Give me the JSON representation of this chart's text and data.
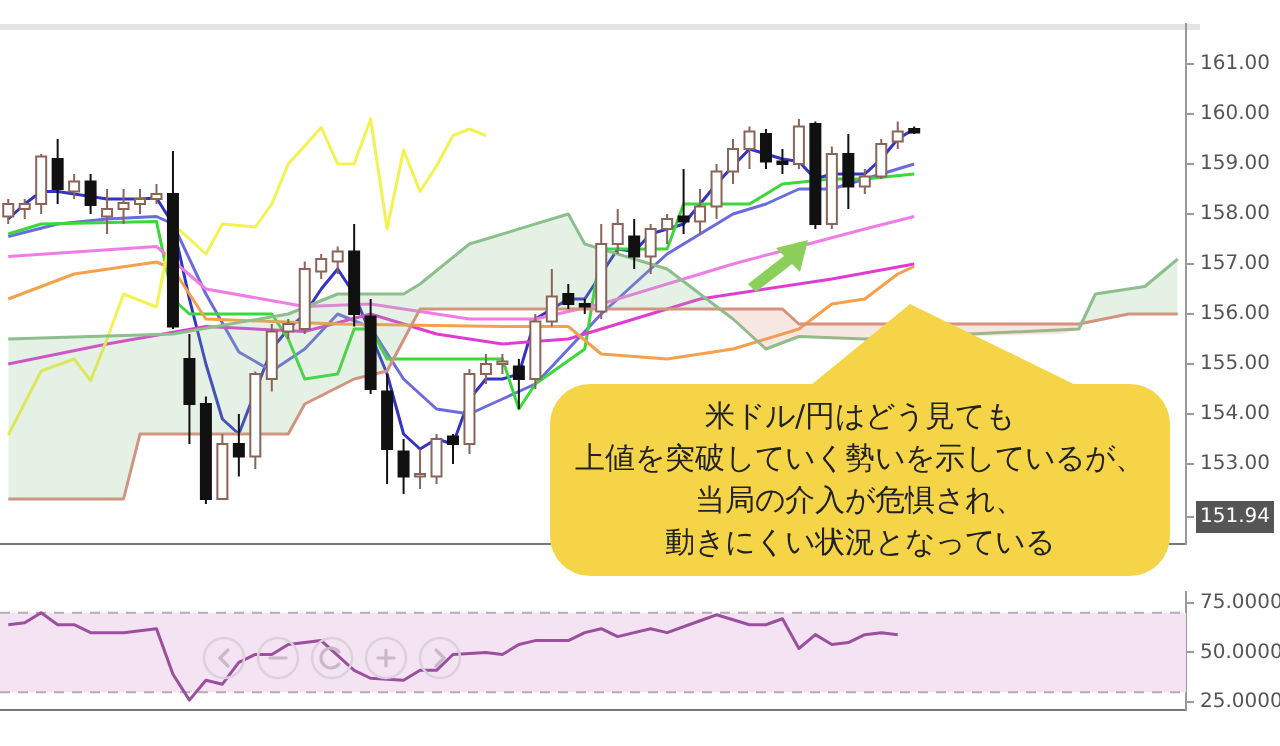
{
  "chart_data": [
    {
      "type": "candlestick",
      "categories": [
        null,
        null,
        null,
        null,
        null,
        null,
        null,
        null,
        null,
        null,
        null,
        null,
        null,
        null,
        null,
        null,
        null,
        null,
        null,
        null,
        null,
        null,
        null,
        null,
        null,
        null,
        null,
        null,
        null,
        null,
        null,
        null,
        null,
        null,
        null,
        null,
        null,
        null,
        null,
        null,
        null,
        null,
        null,
        null,
        null,
        null,
        null,
        null,
        null,
        null,
        null,
        null,
        null,
        null,
        null,
        null,
        null,
        null,
        null,
        null,
        null,
        null,
        null,
        null,
        null,
        null,
        null,
        null,
        null,
        null,
        null,
        null
      ],
      "ohlc": [
        [
          157.95,
          158.3,
          157.8,
          158.2
        ],
        [
          158.1,
          158.3,
          157.9,
          158.2
        ],
        [
          158.2,
          159.2,
          158.0,
          159.15
        ],
        [
          159.1,
          159.5,
          158.2,
          158.5
        ],
        [
          158.45,
          158.8,
          158.3,
          158.65
        ],
        [
          158.65,
          158.8,
          158.0,
          158.18
        ],
        [
          157.95,
          158.5,
          157.6,
          158.1
        ],
        [
          158.1,
          158.5,
          157.8,
          158.22
        ],
        [
          158.2,
          158.5,
          158.0,
          158.3
        ],
        [
          158.3,
          158.6,
          158.2,
          158.4
        ],
        [
          158.4,
          159.26,
          155.7,
          155.75
        ],
        [
          155.1,
          155.6,
          153.4,
          154.2
        ],
        [
          154.2,
          154.35,
          152.2,
          152.3
        ],
        [
          152.3,
          153.6,
          152.3,
          153.4
        ],
        [
          153.4,
          154.0,
          152.75,
          153.15
        ],
        [
          153.15,
          154.85,
          152.9,
          154.8
        ],
        [
          154.7,
          155.8,
          154.45,
          155.65
        ],
        [
          155.65,
          155.9,
          155.5,
          155.8
        ],
        [
          155.7,
          157.05,
          155.6,
          156.9
        ],
        [
          156.85,
          157.2,
          156.7,
          157.1
        ],
        [
          157.05,
          157.35,
          156.8,
          157.25
        ],
        [
          157.25,
          157.8,
          155.75,
          156.0
        ],
        [
          155.95,
          156.3,
          154.4,
          154.5
        ],
        [
          154.45,
          154.8,
          152.6,
          153.3
        ],
        [
          153.25,
          153.5,
          152.4,
          152.75
        ],
        [
          152.75,
          153.3,
          152.5,
          152.8
        ],
        [
          152.75,
          153.6,
          152.6,
          153.5
        ],
        [
          153.55,
          153.6,
          153.0,
          153.4
        ],
        [
          153.4,
          154.9,
          153.2,
          154.8
        ],
        [
          154.8,
          155.2,
          154.6,
          155.0
        ],
        [
          155.0,
          155.2,
          154.8,
          155.05
        ],
        [
          154.95,
          155.1,
          154.1,
          154.7
        ],
        [
          154.7,
          156.0,
          154.5,
          155.85
        ],
        [
          155.85,
          156.9,
          155.75,
          156.35
        ],
        [
          156.4,
          156.6,
          156.1,
          156.2
        ],
        [
          156.2,
          156.3,
          156.0,
          156.15
        ],
        [
          156.05,
          157.8,
          155.9,
          157.4
        ],
        [
          157.4,
          158.1,
          157.2,
          157.8
        ],
        [
          157.55,
          157.9,
          156.9,
          157.15
        ],
        [
          157.15,
          157.8,
          156.8,
          157.7
        ],
        [
          157.7,
          158.0,
          157.4,
          157.9
        ],
        [
          157.95,
          158.9,
          157.6,
          157.85
        ],
        [
          157.85,
          158.5,
          157.6,
          158.15
        ],
        [
          158.15,
          159.0,
          157.9,
          158.85
        ],
        [
          158.85,
          159.5,
          158.6,
          159.3
        ],
        [
          159.3,
          159.75,
          158.9,
          159.65
        ],
        [
          159.6,
          159.7,
          158.9,
          159.05
        ],
        [
          159.05,
          159.3,
          158.8,
          159.0
        ],
        [
          159.0,
          159.9,
          158.9,
          159.75
        ],
        [
          159.8,
          159.85,
          157.7,
          157.8
        ],
        [
          157.8,
          159.35,
          157.7,
          159.2
        ],
        [
          159.2,
          159.6,
          158.1,
          158.55
        ],
        [
          158.55,
          158.9,
          158.4,
          158.75
        ],
        [
          158.75,
          159.5,
          158.7,
          159.4
        ],
        [
          159.45,
          159.85,
          159.3,
          159.65
        ],
        [
          159.7,
          159.75,
          159.6,
          159.63
        ],
        null,
        null,
        null,
        null,
        null,
        null,
        null,
        null,
        null,
        null,
        null,
        null,
        null,
        null,
        null,
        null
      ],
      "series": [
        {
          "type": "line",
          "color": "#8cbf8c",
          "lower": [
            152.3,
            152.3,
            152.3,
            152.3,
            152.3,
            152.3,
            152.3,
            152.3,
            153.6,
            153.6,
            153.6,
            153.6,
            153.6,
            153.6,
            153.6,
            153.6,
            153.6,
            153.6,
            154.2,
            154.4,
            154.55,
            154.7,
            154.8,
            154.86,
            155.5,
            156.1,
            156.1,
            156.1,
            156.1,
            156.1,
            156.1,
            156.1,
            156.1,
            156.1,
            156.1,
            156.1,
            156.1,
            156.1,
            156.1,
            156.1,
            156.1,
            156.1,
            156.1,
            156.1,
            156.1,
            156.1,
            156.1,
            156.1,
            155.8,
            155.8,
            155.8,
            155.8,
            null,
            null,
            null,
            null,
            null,
            null,
            null,
            null,
            null,
            null,
            null,
            null,
            155.8,
            155.8,
            155.85,
            155.95,
            156.0,
            156.0,
            156.0,
            156.0
          ],
          "upper": [
            155.5,
            155.5,
            155.5,
            155.5,
            155.55,
            155.55,
            155.55,
            155.55,
            155.6,
            155.6,
            155.6,
            155.65,
            155.7,
            155.75,
            155.8,
            155.85,
            155.9,
            156.0,
            156.15,
            156.3,
            156.4,
            156.4,
            156.4,
            156.4,
            156.4,
            156.6,
            156.9,
            157.15,
            157.4,
            157.5,
            157.6,
            157.7,
            157.8,
            157.9,
            158.0,
            157.4,
            157.3,
            157.2,
            157.1,
            157.0,
            156.9,
            156.65,
            156.4,
            156.15,
            155.9,
            155.6,
            155.3,
            155.45,
            155.55,
            155.55,
            155.5,
            155.5,
            null,
            null,
            null,
            null,
            null,
            null,
            null,
            null,
            null,
            null,
            null,
            null,
            155.6,
            155.7,
            156.4,
            156.45,
            156.5,
            156.55,
            156.8,
            157.1
          ],
          "values": [
            155.5,
            null,
            null,
            null,
            null,
            null,
            null,
            null,
            null,
            null,
            155.6,
            null,
            null,
            null,
            null,
            null,
            null,
            156.0,
            null,
            null,
            156.4,
            null,
            null,
            null,
            156.4,
            156.6,
            null,
            null,
            157.4,
            null,
            null,
            null,
            null,
            null,
            158.0,
            157.4,
            null,
            null,
            null,
            null,
            156.9,
            null,
            null,
            null,
            155.9,
            null,
            155.3,
            null,
            155.55,
            null,
            null,
            null,
            155.5,
            null,
            null,
            null,
            null,
            null,
            null,
            null,
            null,
            null,
            null,
            null,
            null,
            155.7,
            156.4,
            null,
            null,
            156.55,
            null,
            157.1
          ]
        },
        {
          "type": "line",
          "color": "#d9907e",
          "values": [
            152.3,
            null,
            null,
            null,
            null,
            null,
            null,
            152.3,
            153.6,
            null,
            null,
            null,
            null,
            null,
            null,
            null,
            null,
            153.6,
            154.2,
            null,
            null,
            154.7,
            null,
            154.86,
            null,
            156.1,
            null,
            null,
            null,
            null,
            null,
            null,
            null,
            null,
            null,
            null,
            null,
            null,
            null,
            null,
            null,
            null,
            null,
            null,
            null,
            null,
            null,
            156.1,
            155.8,
            null,
            null,
            null,
            null,
            null,
            null,
            null,
            null,
            null,
            null,
            null,
            null,
            null,
            null,
            null,
            null,
            155.8,
            null,
            null,
            156.0,
            null,
            null,
            156.0
          ]
        },
        {
          "type": "line",
          "color": "#f2f250",
          "values": [
            153.58,
            null,
            154.86,
            null,
            155.1,
            154.67,
            155.5,
            156.4,
            null,
            156.14,
            157.8,
            null,
            157.2,
            157.8,
            null,
            157.74,
            158.2,
            159.0,
            null,
            159.73,
            159.0,
            159.0,
            159.9,
            157.7,
            159.28,
            158.45,
            158.96,
            159.57,
            159.7,
            159.57,
            null,
            null,
            null,
            null,
            null,
            null,
            null,
            null,
            null,
            null,
            null,
            null,
            null,
            null,
            null,
            null,
            null,
            null,
            null,
            null,
            null,
            null,
            null,
            null,
            null,
            null,
            null,
            null,
            null,
            null,
            null,
            null,
            null,
            null,
            null,
            null,
            null,
            null,
            null,
            null,
            null,
            null
          ]
        },
        {
          "type": "line",
          "color": "#f5a04a",
          "values": [
            156.3,
            null,
            null,
            null,
            156.8,
            null,
            null,
            null,
            null,
            157.04,
            156.9,
            null,
            155.9,
            null,
            null,
            null,
            null,
            null,
            null,
            null,
            155.8,
            null,
            null,
            null,
            null,
            null,
            null,
            null,
            null,
            null,
            155.75,
            null,
            null,
            null,
            155.75,
            null,
            155.2,
            null,
            null,
            null,
            155.1,
            null,
            null,
            null,
            155.3,
            null,
            null,
            null,
            155.7,
            null,
            156.2,
            null,
            156.3,
            null,
            156.8,
            156.95,
            null,
            null,
            null,
            null,
            null,
            null,
            null,
            null,
            null,
            null,
            null,
            null,
            null,
            null,
            null,
            null
          ]
        },
        {
          "type": "line",
          "color": "#f07ce6",
          "values": [
            157.15,
            null,
            null,
            null,
            null,
            null,
            null,
            null,
            null,
            157.35,
            null,
            null,
            156.5,
            null,
            null,
            null,
            null,
            null,
            156.15,
            null,
            null,
            null,
            156.2,
            null,
            null,
            null,
            null,
            null,
            155.9,
            null,
            null,
            null,
            155.9,
            null,
            null,
            null,
            156.2,
            null,
            null,
            null,
            156.6,
            null,
            null,
            null,
            157.0,
            null,
            null,
            null,
            null,
            null,
            null,
            null,
            157.7,
            null,
            null,
            157.95,
            null,
            null,
            null,
            null,
            null,
            null,
            null,
            null,
            null,
            null,
            null,
            null,
            null,
            null,
            null,
            null
          ]
        },
        {
          "type": "line",
          "color": "#e03cd2",
          "values": [
            155.0,
            null,
            null,
            null,
            null,
            null,
            155.4,
            null,
            null,
            null,
            null,
            null,
            155.75,
            null,
            null,
            null,
            null,
            null,
            155.65,
            null,
            null,
            null,
            156.0,
            null,
            null,
            null,
            155.6,
            null,
            null,
            null,
            155.4,
            null,
            null,
            null,
            155.5,
            null,
            null,
            null,
            155.9,
            null,
            null,
            null,
            156.3,
            null,
            null,
            null,
            null,
            null,
            null,
            null,
            156.7,
            null,
            null,
            null,
            null,
            157.0,
            null,
            null,
            null,
            null,
            null,
            null,
            null,
            null,
            null,
            null,
            null,
            null,
            null,
            null,
            null,
            null
          ]
        },
        {
          "type": "line",
          "color": "#3ad83a",
          "values": [
            157.6,
            null,
            157.8,
            null,
            null,
            null,
            null,
            null,
            null,
            157.85,
            156.3,
            156.0,
            null,
            null,
            null,
            null,
            156.0,
            155.5,
            154.7,
            null,
            154.8,
            155.7,
            155.7,
            155.1,
            null,
            null,
            null,
            null,
            null,
            null,
            155.1,
            154.1,
            154.6,
            null,
            null,
            155.3,
            157.3,
            null,
            null,
            null,
            157.3,
            158.2,
            null,
            null,
            null,
            158.2,
            null,
            158.6,
            null,
            null,
            158.7,
            null,
            158.7,
            null,
            null,
            158.8,
            null,
            null,
            null,
            null,
            null,
            null,
            null,
            null,
            null,
            null,
            null,
            null,
            null,
            null,
            null,
            null
          ]
        },
        {
          "type": "line",
          "color": "#6b6be0",
          "values": [
            157.55,
            null,
            null,
            157.8,
            null,
            null,
            157.9,
            null,
            null,
            157.95,
            157.8,
            null,
            156.4,
            null,
            155.24,
            null,
            154.86,
            null,
            155.3,
            null,
            156.0,
            null,
            155.73,
            null,
            154.7,
            null,
            154.1,
            null,
            154.0,
            null,
            154.3,
            null,
            154.6,
            null,
            155.3,
            null,
            156.0,
            null,
            156.6,
            null,
            157.2,
            null,
            157.6,
            null,
            158.0,
            null,
            158.2,
            null,
            158.5,
            null,
            158.5,
            null,
            158.7,
            null,
            null,
            159.0,
            null,
            null,
            null,
            null,
            null,
            null,
            null,
            null,
            null,
            null,
            null,
            null,
            null,
            null,
            null,
            null
          ]
        },
        {
          "type": "line",
          "color": "#3333c4",
          "values": [
            157.9,
            158.2,
            158.45,
            158.45,
            158.4,
            158.35,
            158.3,
            158.3,
            158.3,
            158.32,
            157.8,
            156.3,
            155.0,
            153.9,
            153.6,
            null,
            155.3,
            155.7,
            156.0,
            156.5,
            156.9,
            156.4,
            null,
            154.8,
            153.6,
            153.3,
            153.5,
            153.4,
            154.3,
            154.7,
            154.7,
            154.8,
            155.9,
            156.1,
            156.3,
            156.3,
            156.8,
            157.3,
            157.25,
            157.6,
            157.7,
            157.8,
            158.2,
            158.6,
            158.96,
            159.3,
            159.2,
            159.1,
            159.05,
            158.7,
            158.8,
            158.8,
            158.8,
            159.1,
            159.5,
            159.7,
            null,
            null,
            null,
            null,
            null,
            null,
            null,
            null,
            null,
            null,
            null,
            null,
            null,
            null,
            null,
            null
          ]
        }
      ],
      "ylim": [
        151.4,
        161.8
      ],
      "yticks": [
        {
          "value": 151.94,
          "label": "151.94"
        },
        {
          "value": 153,
          "label": "153.00"
        },
        {
          "value": 154,
          "label": "154.00"
        },
        {
          "value": 155,
          "label": "155.00"
        },
        {
          "value": 156,
          "label": "156.00"
        },
        {
          "value": 157,
          "label": "157.00"
        },
        {
          "value": 158,
          "label": "158.00"
        },
        {
          "value": 159,
          "label": "159.00"
        },
        {
          "value": 160,
          "label": "160.00"
        },
        {
          "value": 161,
          "label": "161.00"
        }
      ],
      "annotations": [
        "米ドル/円はどう見ても",
        "上値を突破していく勢いを示しているが、",
        "当局の介入が危惧され、",
        "動きにくい状況となっている"
      ]
    },
    {
      "type": "line",
      "categories": [
        null,
        null,
        null,
        null,
        null,
        null,
        null,
        null,
        null,
        null,
        null,
        null,
        null,
        null,
        null,
        null,
        null,
        null,
        null,
        null,
        null,
        null,
        null,
        null,
        null,
        null,
        null,
        null,
        null,
        null,
        null,
        null,
        null,
        null,
        null,
        null,
        null,
        null,
        null,
        null,
        null,
        null,
        null,
        null,
        null,
        null,
        null,
        null,
        null,
        null,
        null,
        null,
        null,
        null,
        null,
        null,
        null,
        null,
        null,
        null,
        null,
        null,
        null,
        null,
        null,
        null,
        null,
        null,
        null,
        null,
        null,
        null
      ],
      "series": [
        {
          "color": "#9c4f9e",
          "values": [
            64,
            65,
            70,
            64,
            64,
            60,
            null,
            60,
            null,
            62,
            39,
            26,
            36,
            34,
            45,
            49,
            49,
            54,
            null,
            56,
            null,
            41,
            37,
            null,
            36,
            41,
            41,
            49,
            null,
            50,
            49,
            54,
            56,
            null,
            56,
            60,
            62,
            58,
            60,
            62,
            60,
            null,
            66,
            69,
            null,
            64,
            64,
            67,
            52,
            59,
            54,
            55,
            59,
            60,
            59,
            null,
            null,
            null,
            null,
            null,
            null,
            null,
            null,
            null,
            null,
            null,
            null,
            null,
            null,
            null,
            null,
            null
          ]
        }
      ],
      "ylim": [
        21,
        80.5
      ],
      "yticks": [
        {
          "value": 25,
          "label": "25.0000"
        },
        {
          "value": 50,
          "label": "50.0000"
        },
        {
          "value": 75,
          "label": "75.0000"
        }
      ],
      "bands": [
        {
          "axis": "y",
          "from": 30,
          "to": 70,
          "color": "#f3e3f3"
        }
      ],
      "ref_lines": [
        {
          "axis": "y",
          "value": 70,
          "color": "#b8a8b8",
          "line_style": "dashed"
        },
        {
          "axis": "y",
          "value": 30,
          "color": "#b8a8b8",
          "line_style": "dashed"
        }
      ]
    }
  ]
}
